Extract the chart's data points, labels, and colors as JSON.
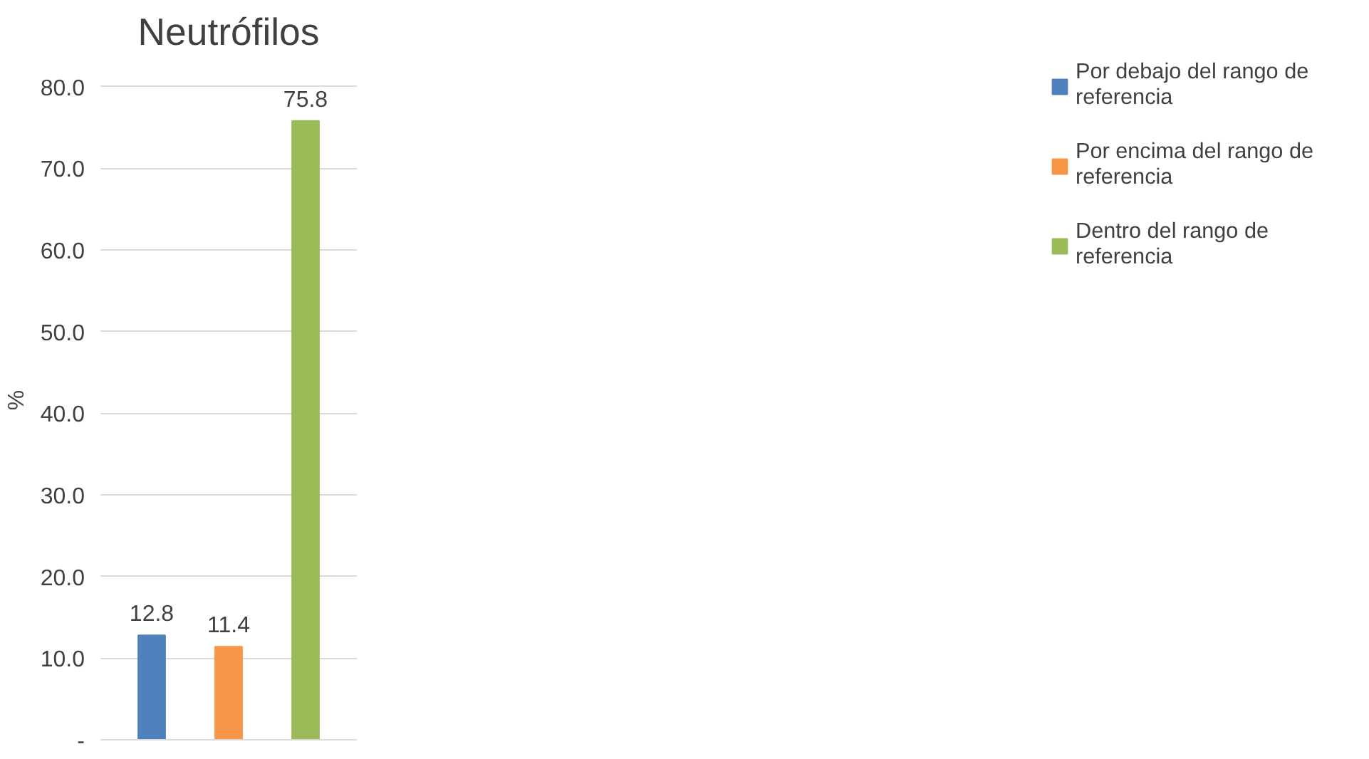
{
  "chart_data": {
    "type": "bar",
    "title": "Neutrófilos",
    "ylabel": "%",
    "categories": [
      null
    ],
    "series": [
      {
        "name": "Por debajo del rango de referencia",
        "color": "#4f81bd",
        "values": [
          12.8
        ]
      },
      {
        "name": "Por encima del rango de referencia",
        "color": "#f79646",
        "values": [
          11.4
        ]
      },
      {
        "name": "Dentro del rango de referencia",
        "color": "#9bbb59",
        "values": [
          75.8
        ]
      }
    ],
    "ylim": [
      0,
      80
    ],
    "yticks": [
      {
        "value": 0,
        "label": "-"
      },
      {
        "value": 10,
        "label": "10.0"
      },
      {
        "value": 20,
        "label": "20.0"
      },
      {
        "value": 30,
        "label": "30.0"
      },
      {
        "value": 40,
        "label": "40.0"
      },
      {
        "value": 50,
        "label": "50.0"
      },
      {
        "value": 60,
        "label": "60.0"
      },
      {
        "value": 70,
        "label": "70.0"
      },
      {
        "value": 80,
        "label": "80.0"
      }
    ],
    "grid": "y",
    "legend": "right",
    "data_labels": true
  }
}
